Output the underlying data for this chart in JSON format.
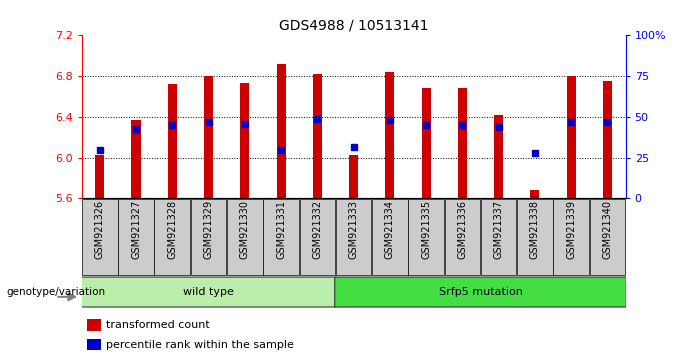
{
  "title": "GDS4988 / 10513141",
  "samples": [
    "GSM921326",
    "GSM921327",
    "GSM921328",
    "GSM921329",
    "GSM921330",
    "GSM921331",
    "GSM921332",
    "GSM921333",
    "GSM921334",
    "GSM921335",
    "GSM921336",
    "GSM921337",
    "GSM921338",
    "GSM921339",
    "GSM921340"
  ],
  "transformed_count": [
    6.02,
    6.37,
    6.72,
    6.8,
    6.73,
    6.92,
    6.82,
    6.02,
    6.84,
    6.68,
    6.68,
    6.42,
    5.68,
    6.8,
    6.75
  ],
  "percentile_rank_y": [
    6.07,
    6.28,
    6.32,
    6.35,
    6.33,
    6.07,
    6.38,
    6.1,
    6.37,
    6.32,
    6.32,
    6.3,
    6.04,
    6.35,
    6.35
  ],
  "ylim_left": [
    5.6,
    7.2
  ],
  "ylim_right": [
    0,
    100
  ],
  "yticks_left": [
    5.6,
    6.0,
    6.4,
    6.8,
    7.2
  ],
  "yticks_right": [
    0,
    25,
    50,
    75,
    100
  ],
  "ytick_labels_right": [
    "0",
    "25",
    "50",
    "75",
    "100%"
  ],
  "bar_color": "#cc0000",
  "dot_color": "#0000cc",
  "bar_bottom": 5.6,
  "groups": [
    {
      "label": "wild type",
      "start": 0,
      "end": 7,
      "color": "#bbeeaa"
    },
    {
      "label": "Srfp5 mutation",
      "start": 7,
      "end": 15,
      "color": "#44dd44"
    }
  ],
  "genotype_label": "genotype/variation",
  "legend_items": [
    {
      "color": "#cc0000",
      "label": "transformed count"
    },
    {
      "color": "#0000cc",
      "label": "percentile rank within the sample"
    }
  ],
  "background_color": "#ffffff",
  "bar_width": 0.25,
  "xticklabel_fontsize": 7,
  "title_fontsize": 10,
  "xtick_bg_color": "#cccccc",
  "grid_color": "#000000",
  "grid_style": ":",
  "grid_lw": 0.7,
  "dot_size": 4
}
